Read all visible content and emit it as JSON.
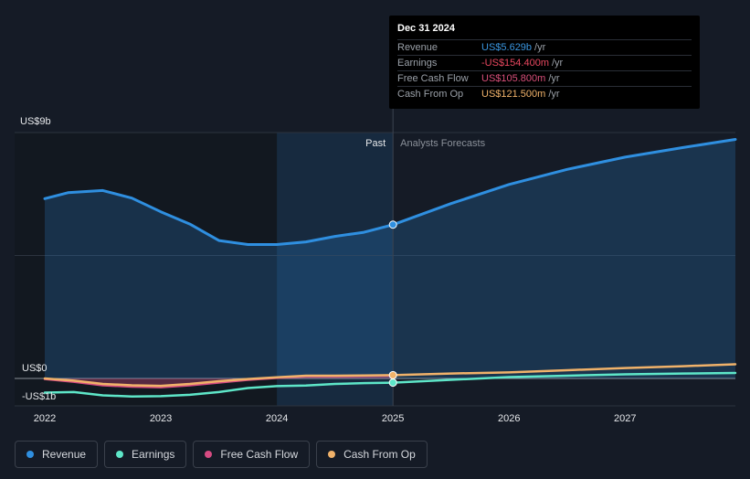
{
  "tooltip": {
    "date": "Dec 31 2024",
    "rows": [
      {
        "label": "Revenue",
        "value": "US$5.629b",
        "unit": "/yr",
        "color": "#3a96e0"
      },
      {
        "label": "Earnings",
        "value": "-US$154.400m",
        "unit": "/yr",
        "color": "#e8475f"
      },
      {
        "label": "Free Cash Flow",
        "value": "US$105.800m",
        "unit": "/yr",
        "color": "#d94f7a"
      },
      {
        "label": "Cash From Op",
        "value": "US$121.500m",
        "unit": "/yr",
        "color": "#f0b26a"
      }
    ]
  },
  "legend": [
    {
      "label": "Revenue",
      "color": "#2f8fe0"
    },
    {
      "label": "Earnings",
      "color": "#5ee6c8"
    },
    {
      "label": "Free Cash Flow",
      "color": "#d64b82"
    },
    {
      "label": "Cash From Op",
      "color": "#f0b26a"
    }
  ],
  "chart_data": {
    "type": "area",
    "y_axis_labels": [
      "US$9b",
      "US$0",
      "-US$1b"
    ],
    "ylim": [
      -1,
      9
    ],
    "xlim": [
      2022,
      2027.95
    ],
    "x_ticks": [
      "2022",
      "2023",
      "2024",
      "2025",
      "2026",
      "2027"
    ],
    "past_label": "Past",
    "forecast_label": "Analysts Forecasts",
    "divider_x": 2025.0,
    "highlight_start_x": 2024.0,
    "series": [
      {
        "name": "Revenue",
        "color": "#2f8fe0",
        "points": [
          [
            2022.0,
            6.58
          ],
          [
            2022.2,
            6.8
          ],
          [
            2022.5,
            6.88
          ],
          [
            2022.75,
            6.6
          ],
          [
            2023.0,
            6.1
          ],
          [
            2023.25,
            5.65
          ],
          [
            2023.5,
            5.05
          ],
          [
            2023.75,
            4.9
          ],
          [
            2024.0,
            4.9
          ],
          [
            2024.25,
            5.0
          ],
          [
            2024.5,
            5.2
          ],
          [
            2024.75,
            5.35
          ],
          [
            2025.0,
            5.629
          ],
          [
            2025.5,
            6.4
          ],
          [
            2026.0,
            7.1
          ],
          [
            2026.5,
            7.65
          ],
          [
            2027.0,
            8.1
          ],
          [
            2027.5,
            8.45
          ],
          [
            2027.95,
            8.75
          ]
        ]
      },
      {
        "name": "Earnings",
        "color": "#5ee6c8",
        "points": [
          [
            2022.0,
            -0.52
          ],
          [
            2022.25,
            -0.5
          ],
          [
            2022.5,
            -0.62
          ],
          [
            2022.75,
            -0.66
          ],
          [
            2023.0,
            -0.65
          ],
          [
            2023.25,
            -0.6
          ],
          [
            2023.5,
            -0.5
          ],
          [
            2023.75,
            -0.35
          ],
          [
            2024.0,
            -0.28
          ],
          [
            2024.25,
            -0.26
          ],
          [
            2024.5,
            -0.2
          ],
          [
            2024.75,
            -0.17
          ],
          [
            2025.0,
            -0.154
          ],
          [
            2025.5,
            -0.05
          ],
          [
            2026.0,
            0.05
          ],
          [
            2026.5,
            0.1
          ],
          [
            2027.0,
            0.15
          ],
          [
            2027.5,
            0.18
          ],
          [
            2027.95,
            0.2
          ]
        ]
      },
      {
        "name": "Free Cash Flow",
        "color": "#d64b82",
        "points": [
          [
            2022.0,
            -0.02
          ],
          [
            2022.25,
            -0.12
          ],
          [
            2022.5,
            -0.25
          ],
          [
            2022.75,
            -0.3
          ],
          [
            2023.0,
            -0.32
          ],
          [
            2023.25,
            -0.25
          ],
          [
            2023.5,
            -0.15
          ],
          [
            2023.75,
            -0.05
          ],
          [
            2024.0,
            0.02
          ],
          [
            2024.25,
            0.08
          ],
          [
            2024.5,
            0.08
          ],
          [
            2024.75,
            0.09
          ],
          [
            2025.0,
            0.106
          ]
        ]
      },
      {
        "name": "Cash From Op",
        "color": "#f0b26a",
        "points": [
          [
            2022.0,
            0.0
          ],
          [
            2022.25,
            -0.08
          ],
          [
            2022.5,
            -0.2
          ],
          [
            2022.75,
            -0.25
          ],
          [
            2023.0,
            -0.27
          ],
          [
            2023.25,
            -0.2
          ],
          [
            2023.5,
            -0.1
          ],
          [
            2023.75,
            -0.02
          ],
          [
            2024.0,
            0.04
          ],
          [
            2024.25,
            0.1
          ],
          [
            2024.5,
            0.1
          ],
          [
            2024.75,
            0.11
          ],
          [
            2025.0,
            0.1215
          ],
          [
            2025.5,
            0.18
          ],
          [
            2026.0,
            0.22
          ],
          [
            2026.5,
            0.3
          ],
          [
            2027.0,
            0.38
          ],
          [
            2027.5,
            0.45
          ],
          [
            2027.95,
            0.52
          ]
        ]
      }
    ]
  }
}
